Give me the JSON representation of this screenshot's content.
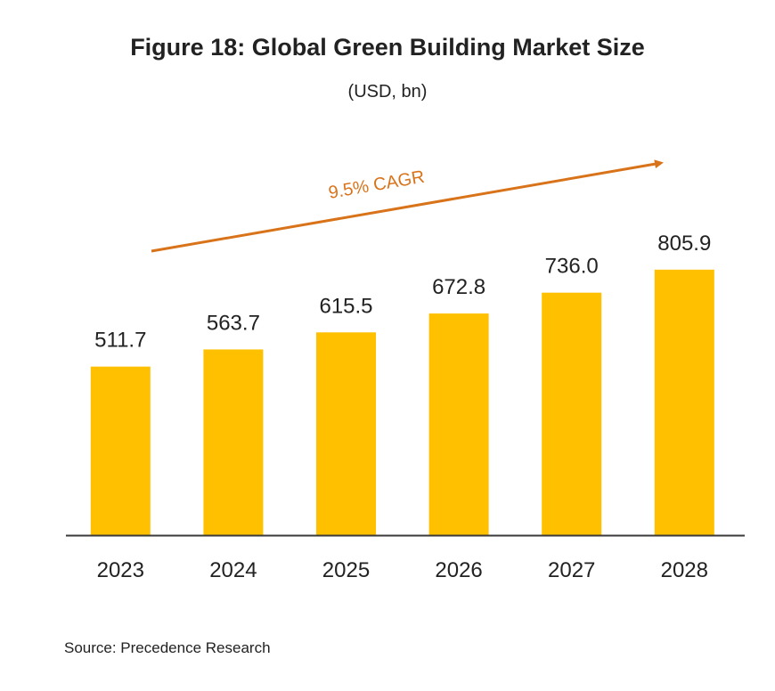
{
  "title": "Figure 18: Global Green Building Market Size",
  "subtitle": "(USD, bn)",
  "source": "Source:  Precedence Research",
  "colors": {
    "bar": "#FFC000",
    "arrow": "#D9731A",
    "axis": "#3a3a3a",
    "text": "#222222"
  },
  "annotation": {
    "text": "9.5% CAGR"
  },
  "chart_data": {
    "type": "bar",
    "categories": [
      "2023",
      "2024",
      "2025",
      "2026",
      "2027",
      "2028"
    ],
    "values": [
      511.7,
      563.7,
      615.5,
      672.8,
      736.0,
      805.9
    ],
    "value_labels": [
      "511.7",
      "563.7",
      "615.5",
      "672.8",
      "736.0",
      "805.9"
    ],
    "title": "Figure 18: Global Green Building Market Size",
    "subtitle": "(USD, bn)",
    "xlabel": "",
    "ylabel": "",
    "ylim": [
      0,
      1020
    ],
    "grid": false,
    "legend": "none",
    "annotations": [
      "9.5% CAGR"
    ]
  }
}
